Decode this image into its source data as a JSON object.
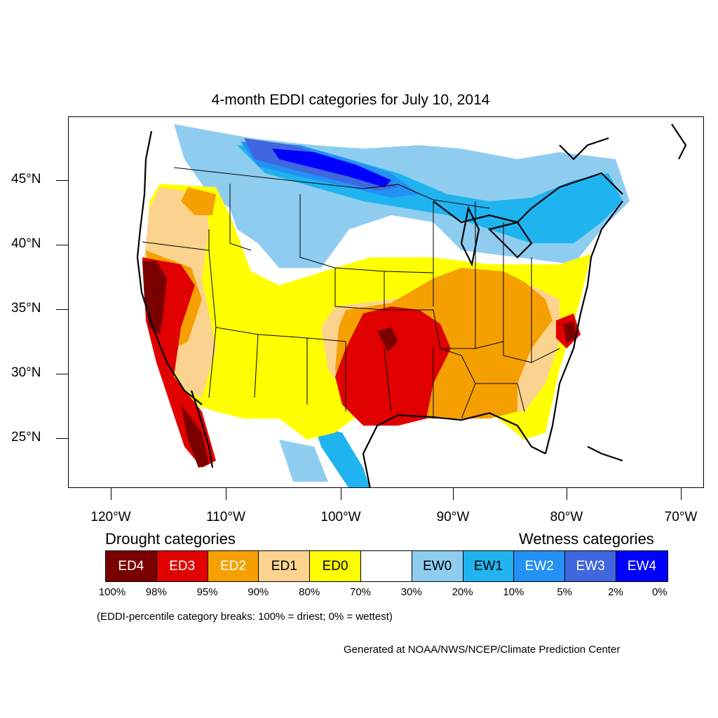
{
  "title": "4-month EDDI categories for July 10, 2014",
  "map": {
    "lat_labels": [
      "45°N",
      "40°N",
      "35°N",
      "30°N",
      "25°N"
    ],
    "lon_labels": [
      "120°W",
      "110°W",
      "100°W",
      "90°W",
      "80°W",
      "70°W"
    ],
    "colors": {
      "ED4": "#7a0000",
      "ED3": "#e00000",
      "ED2": "#f5a000",
      "ED1": "#fcd38e",
      "ED0": "#ffff00",
      "EW0": "#8fcdf0",
      "EW1": "#1fb4f0",
      "EW2": "#2391f5",
      "EW3": "#4066e0",
      "EW4": "#0000ff"
    }
  },
  "legend": {
    "drought_heading": "Drought categories",
    "wetness_heading": "Wetness categories",
    "boxes": [
      {
        "label": "ED4",
        "color": "#7a0000",
        "text_color": "#ffffff"
      },
      {
        "label": "ED3",
        "color": "#e00000",
        "text_color": "#ffffff"
      },
      {
        "label": "ED2",
        "color": "#f5a000",
        "text_color": "#ffffff"
      },
      {
        "label": "ED1",
        "color": "#fcd38e",
        "text_color": "#000000"
      },
      {
        "label": "ED0",
        "color": "#ffff00",
        "text_color": "#000000"
      },
      {
        "label": "",
        "color": "#ffffff",
        "text_color": "#000000"
      },
      {
        "label": "EW0",
        "color": "#8fcdf0",
        "text_color": "#000000"
      },
      {
        "label": "EW1",
        "color": "#1fb4f0",
        "text_color": "#000000"
      },
      {
        "label": "EW2",
        "color": "#2391f5",
        "text_color": "#ffffff"
      },
      {
        "label": "EW3",
        "color": "#4066e0",
        "text_color": "#ffffff"
      },
      {
        "label": "EW4",
        "color": "#0000ff",
        "text_color": "#ffffff"
      }
    ],
    "percent_breaks": [
      "100%",
      "98%",
      "95%",
      "90%",
      "80%",
      "70%",
      "30%",
      "20%",
      "10%",
      "5%",
      "2%",
      "0%"
    ]
  },
  "note": "(EDDI-percentile category breaks: 100% = driest; 0% = wettest)",
  "credit": "Generated at NOAA/NWS/NCEP/Climate Prediction Center"
}
